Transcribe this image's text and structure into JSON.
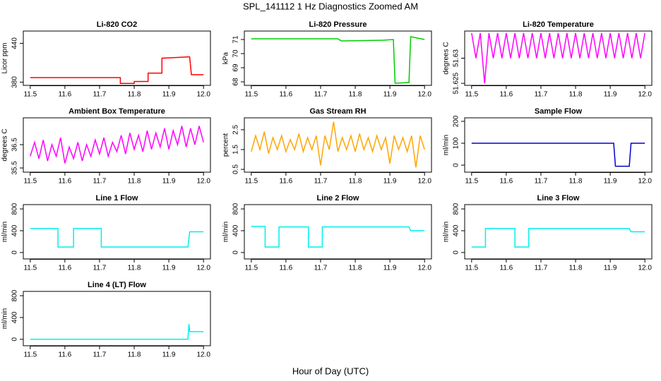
{
  "title": "SPL_141112  1 Hz Diagnostics Zoomed AM",
  "xlabel": "Hour of Day (UTC)",
  "chart_data": [
    {
      "type": "line",
      "title": "Li-820 CO2",
      "ylabel": "Licor ppm",
      "color": "#ff0000",
      "x": [
        11.5,
        11.76,
        11.76,
        11.8,
        11.8,
        11.84,
        11.84,
        11.88,
        11.88,
        11.955,
        11.96,
        11.965,
        12.0
      ],
      "values": [
        387,
        387,
        378,
        378,
        381,
        381,
        394,
        394,
        417,
        419,
        419,
        391.5,
        391.5
      ],
      "xlim": [
        11.48,
        12.02
      ],
      "ylim": [
        375,
        459
      ],
      "xticks": [
        11.5,
        11.6,
        11.7,
        11.8,
        11.9,
        {
          "value": 12,
          "label": "12.0"
        }
      ],
      "yticks": [
        380,
        440
      ]
    },
    {
      "type": "line",
      "title": "Li-820 Pressure",
      "ylabel": "kPa",
      "color": "#00cc00",
      "x": [
        11.5,
        11.75,
        11.76,
        11.88,
        11.91,
        11.915,
        11.955,
        11.96,
        12.0
      ],
      "values": [
        71.05,
        71.05,
        70.9,
        70.95,
        71.0,
        67.9,
        67.95,
        71.2,
        71.0
      ],
      "xlim": [
        11.48,
        12.02
      ],
      "ylim": [
        67.75,
        71.6
      ],
      "xticks": [
        11.5,
        11.6,
        11.7,
        11.8,
        11.9,
        {
          "value": 12,
          "label": "12.0"
        }
      ],
      "yticks": [
        68,
        69,
        70,
        71
      ]
    },
    {
      "type": "line",
      "title": "Li-820 Temperature",
      "ylabel": "degrees C",
      "color": "#ff00ff",
      "x": [
        11.5,
        11.5125,
        11.525,
        11.5375,
        11.55,
        11.5625,
        11.575,
        11.5875,
        11.6,
        11.6125,
        11.625,
        11.6375,
        11.65,
        11.6625,
        11.675,
        11.6875,
        11.7,
        11.7125,
        11.725,
        11.7375,
        11.75,
        11.7625,
        11.775,
        11.7875,
        11.8,
        11.8125,
        11.825,
        11.8375,
        11.85,
        11.8625,
        11.875,
        11.8875,
        11.9,
        11.9125,
        11.925,
        11.9375,
        11.95,
        11.9625,
        11.975,
        11.9875,
        12.0
      ],
      "values": [
        51.635,
        51.63,
        51.635,
        51.625,
        51.635,
        51.63,
        51.635,
        51.63,
        51.635,
        51.63,
        51.635,
        51.63,
        51.635,
        51.63,
        51.635,
        51.63,
        51.635,
        51.63,
        51.635,
        51.63,
        51.635,
        51.63,
        51.635,
        51.63,
        51.635,
        51.63,
        51.635,
        51.63,
        51.635,
        51.63,
        51.635,
        51.63,
        51.635,
        51.63,
        51.635,
        51.63,
        51.635,
        51.63,
        51.635,
        51.63,
        51.635
      ],
      "xlim": [
        11.48,
        12.02
      ],
      "ylim": [
        51.6246,
        51.6354
      ],
      "xticks": [
        11.5,
        11.6,
        11.7,
        11.8,
        11.9,
        {
          "value": 12,
          "label": "12.0"
        }
      ],
      "yticks": [
        51.625,
        51.63
      ]
    },
    {
      "type": "line",
      "title": "Ambient Box Temperature",
      "ylabel": "degrees C",
      "color": "#ff00ff",
      "x": [
        11.5,
        11.5125,
        11.525,
        11.5375,
        11.55,
        11.5625,
        11.575,
        11.5875,
        11.6,
        11.6125,
        11.625,
        11.6375,
        11.65,
        11.6625,
        11.675,
        11.6875,
        11.7,
        11.7125,
        11.725,
        11.7375,
        11.75,
        11.7625,
        11.775,
        11.7875,
        11.8,
        11.8125,
        11.825,
        11.8375,
        11.85,
        11.8625,
        11.875,
        11.8875,
        11.9,
        11.9125,
        11.925,
        11.9375,
        11.95,
        11.9625,
        11.975,
        11.9875,
        12.0
      ],
      "values": [
        36.0,
        36.6,
        35.9,
        36.7,
        35.8,
        36.5,
        36.0,
        36.8,
        35.7,
        36.4,
        35.9,
        36.6,
        35.8,
        36.5,
        36.0,
        36.7,
        36.1,
        36.8,
        36.0,
        36.6,
        36.2,
        36.9,
        36.1,
        37.0,
        36.3,
        36.9,
        36.2,
        37.1,
        36.3,
        37.0,
        36.4,
        37.2,
        36.3,
        37.1,
        36.5,
        37.3,
        36.4,
        37.2,
        36.5,
        37.3,
        36.6
      ],
      "xlim": [
        11.48,
        12.02
      ],
      "ylim": [
        35.32,
        37.65
      ],
      "xticks": [
        11.5,
        11.6,
        11.7,
        11.8,
        11.9,
        {
          "value": 12,
          "label": "12.0"
        }
      ],
      "yticks": [
        35.5,
        36.5
      ]
    },
    {
      "type": "line",
      "title": "Gas Stream RH",
      "ylabel": "percent",
      "color": "#ffa500",
      "x": [
        11.5,
        11.5125,
        11.525,
        11.5375,
        11.55,
        11.5625,
        11.575,
        11.5875,
        11.6,
        11.6125,
        11.625,
        11.6375,
        11.65,
        11.6625,
        11.675,
        11.6875,
        11.7,
        11.7125,
        11.725,
        11.7375,
        11.75,
        11.7625,
        11.775,
        11.7875,
        11.8,
        11.8125,
        11.825,
        11.8375,
        11.85,
        11.8625,
        11.875,
        11.8875,
        11.9,
        11.9125,
        11.925,
        11.9375,
        11.95,
        11.9625,
        11.975,
        11.9875,
        12.0
      ],
      "values": [
        1.4,
        2.2,
        1.5,
        2.4,
        1.3,
        2.1,
        1.5,
        2.2,
        1.4,
        2.0,
        1.5,
        2.3,
        1.4,
        2.1,
        1.5,
        2.2,
        0.7,
        2.2,
        1.5,
        2.9,
        1.4,
        2.1,
        1.5,
        2.2,
        1.4,
        2.3,
        1.5,
        2.1,
        1.4,
        2.2,
        1.5,
        2.1,
        0.8,
        2.2,
        1.5,
        2.1,
        1.4,
        2.2,
        0.6,
        2.2,
        1.5
      ],
      "xlim": [
        11.48,
        12.02
      ],
      "ylim": [
        0.36,
        3.1
      ],
      "xticks": [
        11.5,
        11.6,
        11.7,
        11.8,
        11.9,
        {
          "value": 12,
          "label": "12.0"
        }
      ],
      "yticks": [
        0.5,
        1.5,
        2.5
      ]
    },
    {
      "type": "line",
      "title": "Sample Flow",
      "ylabel": "ml/min",
      "color": "#0000cc",
      "x": [
        11.5,
        11.91,
        11.915,
        11.955,
        11.96,
        12.0
      ],
      "values": [
        100,
        100,
        -5,
        -5,
        100,
        100
      ],
      "xlim": [
        11.48,
        12.02
      ],
      "ylim": [
        -32,
        216
      ],
      "xticks": [
        11.5,
        11.6,
        11.7,
        11.8,
        11.9,
        {
          "value": 12,
          "label": "12.0"
        }
      ],
      "yticks": [
        0,
        100,
        200
      ]
    },
    {
      "type": "line",
      "title": "Line 1 Flow",
      "ylabel": "ml/min",
      "color": "#00eeee",
      "x": [
        11.5,
        11.58,
        11.58,
        11.625,
        11.625,
        11.705,
        11.705,
        11.955,
        11.96,
        12.0
      ],
      "values": [
        440,
        440,
        100,
        100,
        440,
        440,
        100,
        100,
        380,
        380
      ],
      "xlim": [
        11.48,
        12.02
      ],
      "ylim": [
        -118,
        879
      ],
      "xticks": [
        11.5,
        11.6,
        11.7,
        11.8,
        11.9,
        {
          "value": 12,
          "label": "12.0"
        }
      ],
      "yticks": [
        0,
        400,
        800
      ]
    },
    {
      "type": "line",
      "title": "Line 2 Flow",
      "ylabel": "ml/min",
      "color": "#00eeee",
      "x": [
        11.5,
        11.54,
        11.54,
        11.58,
        11.58,
        11.665,
        11.665,
        11.705,
        11.705,
        11.955,
        11.96,
        12.0
      ],
      "values": [
        480,
        480,
        100,
        100,
        470,
        470,
        100,
        100,
        470,
        470,
        400,
        400
      ],
      "xlim": [
        11.48,
        12.02
      ],
      "ylim": [
        -118,
        879
      ],
      "xticks": [
        11.5,
        11.6,
        11.7,
        11.8,
        11.9,
        {
          "value": 12,
          "label": "12.0"
        }
      ],
      "yticks": [
        0,
        400,
        800
      ]
    },
    {
      "type": "line",
      "title": "Line 3 Flow",
      "ylabel": "ml/min",
      "color": "#00eeee",
      "x": [
        11.5,
        11.54,
        11.54,
        11.625,
        11.625,
        11.665,
        11.665,
        11.955,
        11.96,
        12.0
      ],
      "values": [
        100,
        100,
        440,
        440,
        100,
        100,
        440,
        440,
        380,
        380
      ],
      "xlim": [
        11.48,
        12.02
      ],
      "ylim": [
        -118,
        879
      ],
      "xticks": [
        11.5,
        11.6,
        11.7,
        11.8,
        11.9,
        {
          "value": 12,
          "label": "12.0"
        }
      ],
      "yticks": [
        0,
        400,
        800
      ]
    },
    {
      "type": "line",
      "title": "Line 4 (LT) Flow",
      "ylabel": "ml/min",
      "color": "#00eeee",
      "x": [
        11.5,
        11.955,
        11.958,
        11.96,
        11.962,
        12.0
      ],
      "values": [
        0,
        0,
        280,
        150,
        140,
        140
      ],
      "xlim": [
        11.48,
        12.02
      ],
      "ylim": [
        -118,
        879
      ],
      "xticks": [
        11.5,
        11.6,
        11.7,
        11.8,
        11.9,
        {
          "value": 12,
          "label": "12.0"
        }
      ],
      "yticks": [
        0,
        400,
        800
      ]
    }
  ]
}
